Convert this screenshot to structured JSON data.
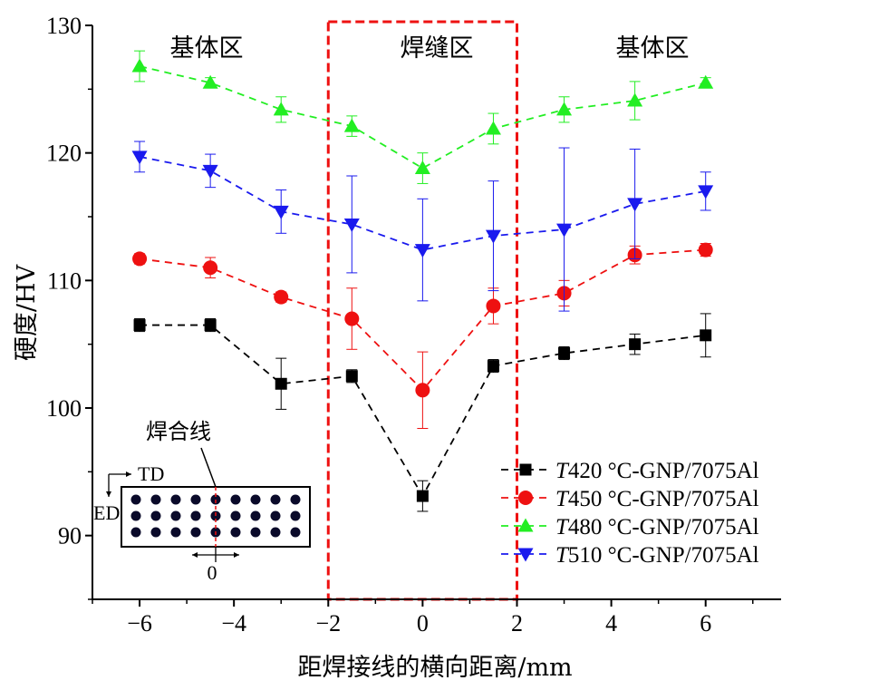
{
  "chart_data": {
    "type": "line",
    "xlabel": "距焊接线的横向距离/mm",
    "ylabel": "硬度/HV",
    "xlim": [
      -7,
      7.6
    ],
    "ylim": [
      85,
      130
    ],
    "xticks": [
      -6,
      -4,
      -2,
      0,
      2,
      4,
      6
    ],
    "xtick_labels": [
      "−6",
      "−4",
      "−2",
      "0",
      "2",
      "4",
      "6"
    ],
    "yticks": [
      90,
      100,
      110,
      120,
      130
    ],
    "grid": false,
    "legend_position": "bottom-right",
    "x": [
      -6,
      -4.5,
      -3,
      -1.5,
      0,
      1.5,
      3,
      4.5,
      6
    ],
    "series": [
      {
        "name_prefix": "T",
        "name_suffix": "420 °C-GNP/7075Al",
        "color": "#000000",
        "marker": "square",
        "values": [
          106.5,
          106.5,
          101.9,
          102.5,
          93.1,
          103.3,
          104.3,
          105.0,
          105.7
        ],
        "errors": [
          0.5,
          0.5,
          2.0,
          0.5,
          1.2,
          0.5,
          0.5,
          0.8,
          1.7
        ]
      },
      {
        "name_prefix": "T",
        "name_suffix": "450 °C-GNP/7075Al",
        "color": "#ee1111",
        "marker": "circle",
        "values": [
          111.7,
          111.0,
          108.7,
          107.0,
          101.4,
          108.0,
          109.0,
          112.0,
          112.4
        ],
        "errors": [
          0.4,
          0.8,
          0.4,
          2.4,
          3.0,
          1.4,
          1.0,
          0.7,
          0.5
        ]
      },
      {
        "name_prefix": "T",
        "name_suffix": "480 °C-GNP/7075Al",
        "color": "#22ee22",
        "marker": "triangle-up",
        "values": [
          126.8,
          125.5,
          123.4,
          122.1,
          118.8,
          121.9,
          123.4,
          124.1,
          125.5
        ],
        "errors": [
          1.2,
          0.4,
          1.0,
          0.8,
          1.2,
          1.2,
          1.0,
          1.5,
          0.4
        ]
      },
      {
        "name_prefix": "T",
        "name_suffix": "510 °C-GNP/7075Al",
        "color": "#1a1aee",
        "marker": "triangle-down",
        "values": [
          119.7,
          118.6,
          115.4,
          114.4,
          112.4,
          113.5,
          114.0,
          116.0,
          117.0
        ],
        "errors": [
          1.2,
          1.3,
          1.7,
          3.8,
          4.0,
          4.3,
          6.4,
          4.3,
          1.5
        ]
      }
    ],
    "region_labels": [
      {
        "text": "基体区",
        "color": "#000000"
      },
      {
        "text": "焊缝区",
        "color": "#ee1111"
      },
      {
        "text": "基体区",
        "color": "#000000"
      }
    ],
    "weld_zone_x": [
      -2,
      2
    ],
    "inset": {
      "title": "焊合线",
      "td_label": "TD",
      "ed_label": "ED",
      "origin_label": "0"
    }
  }
}
